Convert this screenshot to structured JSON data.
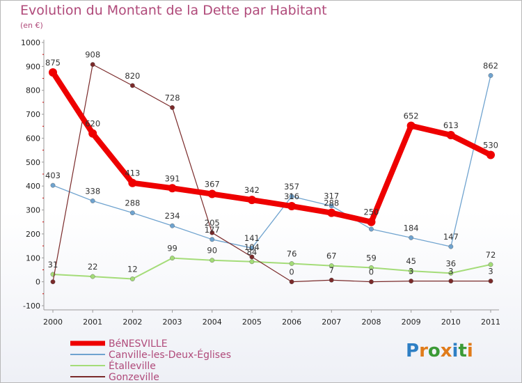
{
  "title": "Evolution du Montant de la Dette par Habitant",
  "subtitle": "(en €)",
  "logo": {
    "letters": [
      "P",
      "r",
      "o",
      "x",
      "i",
      "t",
      "i"
    ],
    "colors": [
      "#2e7fc4",
      "#e07b1a",
      "#3b9a36",
      "#e07b1a",
      "#2e7fc4",
      "#3b9a36",
      "#e07b1a"
    ]
  },
  "chart_data": {
    "type": "line",
    "x": [
      "2000",
      "2001",
      "2002",
      "2003",
      "2004",
      "2005",
      "2006",
      "2007",
      "2008",
      "2009",
      "2010",
      "2011"
    ],
    "ylim": [
      -100,
      1000
    ],
    "yticks": [
      "-100",
      "0",
      "100",
      "200",
      "300",
      "400",
      "500",
      "600",
      "700",
      "800",
      "900",
      "1000"
    ],
    "grid": false,
    "legend_position": "bottom-left",
    "series": [
      {
        "name": "BéNESVILLE",
        "color": "#ee0000",
        "width": 8,
        "marker": 6,
        "values": [
          875,
          620,
          413,
          391,
          367,
          342,
          316,
          288,
          250,
          652,
          613,
          530
        ],
        "labels": [
          "875",
          "620",
          "413",
          "391",
          "367",
          "342",
          "316",
          "288",
          "250",
          "652",
          "613",
          "530"
        ]
      },
      {
        "name": "Canville-les-Deux-Églises",
        "color": "#6fa3cf",
        "width": 1.3,
        "marker": 3.2,
        "values": [
          403,
          338,
          288,
          234,
          177,
          141,
          357,
          317,
          220,
          184,
          147,
          862
        ],
        "labels": [
          "403",
          "338",
          "288",
          "234",
          "177",
          "141",
          "357",
          "317",
          "",
          "184",
          "147",
          "862"
        ]
      },
      {
        "name": "Étalleville",
        "color": "#a4dc78",
        "width": 2,
        "marker": 3.2,
        "values": [
          31,
          22,
          12,
          99,
          90,
          84,
          76,
          67,
          59,
          45,
          36,
          72
        ],
        "labels": [
          "31",
          "22",
          "12",
          "99",
          "90",
          "84",
          "76",
          "67",
          "59",
          "45",
          "36",
          "72"
        ]
      },
      {
        "name": "Gonzeville",
        "color": "#7a2a2a",
        "width": 1.2,
        "marker": 3.2,
        "values": [
          0,
          908,
          820,
          728,
          205,
          104,
          0,
          7,
          0,
          3,
          3,
          3
        ],
        "labels": [
          "",
          "908",
          "820",
          "728",
          "205",
          "104",
          "0",
          "7",
          "0",
          "3",
          "3",
          "3"
        ]
      }
    ]
  }
}
